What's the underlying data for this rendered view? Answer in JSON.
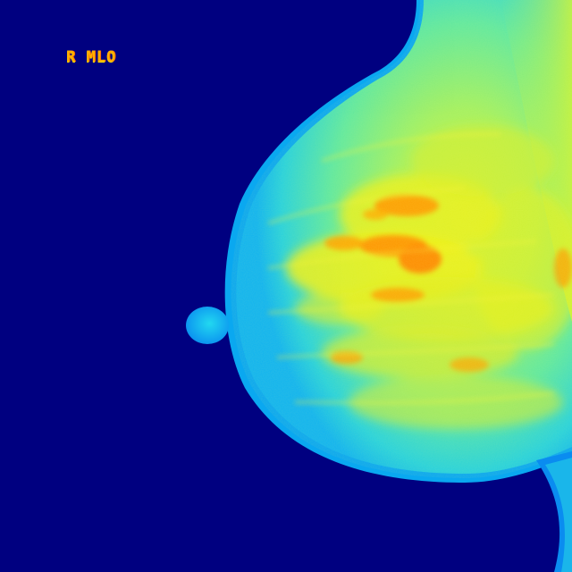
{
  "image": {
    "view_label": "R MLO",
    "colors": {
      "background": "#000080",
      "skin_edge": "#0aa8f0",
      "tissue_low": "#22e0d6",
      "tissue_mid": "#8ef07a",
      "tissue_high": "#f2f21c",
      "tissue_dense": "#ff8c00",
      "label": "#ffb000"
    }
  }
}
